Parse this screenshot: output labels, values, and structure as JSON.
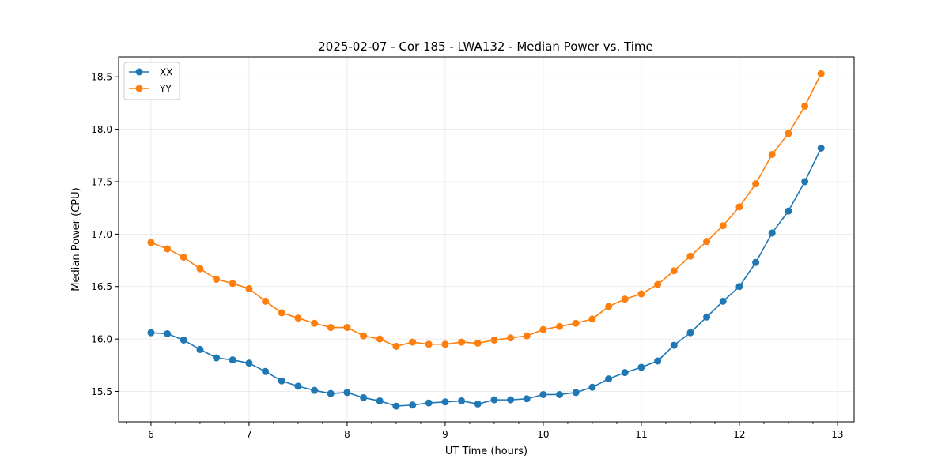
{
  "chart_data": {
    "type": "line",
    "title": "2025-02-07 - Cor 185 - LWA132 - Median Power vs. Time",
    "xlabel": "UT Time (hours)",
    "ylabel": "Median Power (CPU)",
    "xlim": [
      5.67,
      13.17
    ],
    "ylim": [
      15.21,
      18.69
    ],
    "x_ticks": [
      6,
      7,
      8,
      9,
      10,
      11,
      12,
      13
    ],
    "x_tick_labels": [
      "6",
      "7",
      "8",
      "9",
      "10",
      "11",
      "12",
      "13"
    ],
    "x_minor_step": 0.25,
    "y_ticks": [
      15.5,
      16.0,
      16.5,
      17.0,
      17.5,
      18.0,
      18.5
    ],
    "y_tick_labels": [
      "15.5",
      "16.0",
      "16.5",
      "17.0",
      "17.5",
      "18.0",
      "18.5"
    ],
    "grid": true,
    "legend_position": "upper-left",
    "x": [
      6.0,
      6.167,
      6.333,
      6.5,
      6.667,
      6.833,
      7.0,
      7.167,
      7.333,
      7.5,
      7.667,
      7.833,
      8.0,
      8.167,
      8.333,
      8.5,
      8.667,
      8.833,
      9.0,
      9.167,
      9.333,
      9.5,
      9.667,
      9.833,
      10.0,
      10.167,
      10.333,
      10.5,
      10.667,
      10.833,
      11.0,
      11.167,
      11.333,
      11.5,
      11.667,
      11.833,
      12.0,
      12.167,
      12.333,
      12.5,
      12.667,
      12.833
    ],
    "series": [
      {
        "name": "XX",
        "color": "#1f77b4",
        "values": [
          16.06,
          16.05,
          15.99,
          15.9,
          15.82,
          15.8,
          15.77,
          15.69,
          15.6,
          15.55,
          15.51,
          15.48,
          15.49,
          15.44,
          15.41,
          15.36,
          15.37,
          15.39,
          15.4,
          15.41,
          15.38,
          15.42,
          15.42,
          15.43,
          15.47,
          15.47,
          15.49,
          15.54,
          15.62,
          15.68,
          15.73,
          15.79,
          15.94,
          16.06,
          16.21,
          16.36,
          16.5,
          16.73,
          17.01,
          17.22,
          17.5,
          17.82
        ]
      },
      {
        "name": "YY",
        "color": "#ff7f0e",
        "values": [
          16.92,
          16.86,
          16.78,
          16.67,
          16.57,
          16.53,
          16.48,
          16.36,
          16.25,
          16.2,
          16.15,
          16.11,
          16.11,
          16.03,
          16.0,
          15.93,
          15.97,
          15.95,
          15.95,
          15.97,
          15.96,
          15.99,
          16.01,
          16.03,
          16.09,
          16.12,
          16.15,
          16.19,
          16.31,
          16.38,
          16.43,
          16.52,
          16.65,
          16.79,
          16.93,
          17.08,
          17.26,
          17.48,
          17.76,
          17.96,
          18.22,
          18.53
        ]
      }
    ]
  }
}
